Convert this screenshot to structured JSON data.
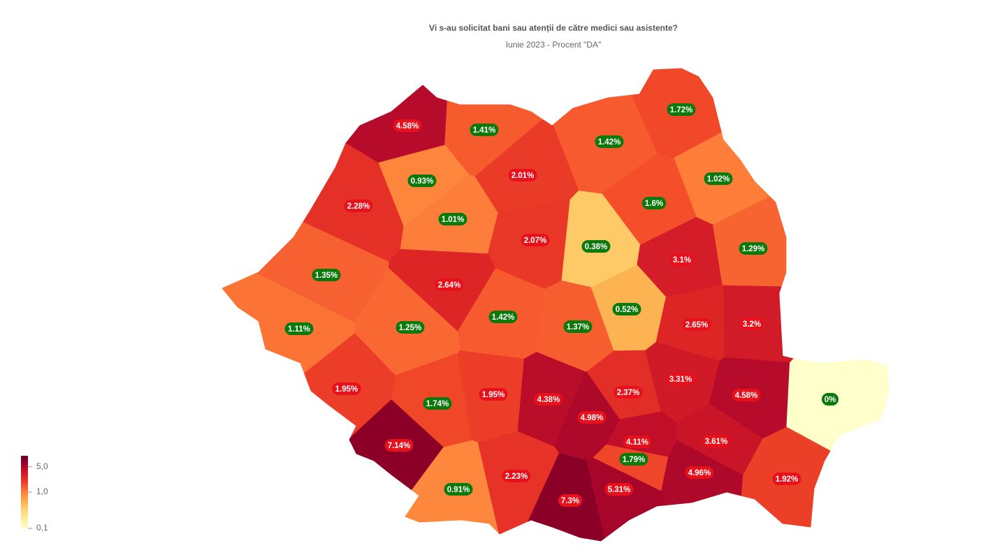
{
  "chart_data": {
    "type": "map",
    "title": "Vi s-au solicitat bani sau atenții de către medici sau asistente?",
    "subtitle": "Iunie 2023 - Procent \"DA\"",
    "values": [
      4.58,
      1.41,
      1.42,
      1.72,
      0.93,
      2.01,
      1.02,
      2.28,
      1.6,
      1.01,
      2.07,
      0.38,
      3.1,
      1.29,
      1.35,
      2.64,
      1.42,
      1.37,
      0.52,
      2.65,
      3.2,
      1.11,
      1.25,
      1.95,
      1.74,
      1.95,
      4.38,
      4.98,
      2.37,
      3.31,
      4.58,
      0,
      7.14,
      4.11,
      3.61,
      1.79,
      0.91,
      2.23,
      4.96,
      1.92,
      7.3,
      5.31
    ],
    "value_labels": [
      "4.58%",
      "1.41%",
      "1.42%",
      "1.72%",
      "0.93%",
      "2.01%",
      "1.02%",
      "2.28%",
      "1.6%",
      "1.01%",
      "2.07%",
      "0.38%",
      "3.1%",
      "1.29%",
      "1.35%",
      "2.64%",
      "1.42%",
      "1.37%",
      "0.52%",
      "2.65%",
      "3.2%",
      "1.11%",
      "1.25%",
      "1.95%",
      "1.74%",
      "1.95%",
      "4.38%",
      "4.98%",
      "2.37%",
      "3.31%",
      "4.58%",
      "0%",
      "7.14%",
      "4.11%",
      "3.61%",
      "1.79%",
      "0.91%",
      "2.23%",
      "4.96%",
      "1.92%",
      "7.3%",
      "5.31%"
    ],
    "label_colors": [
      "#e8101a",
      "#0b7a0b",
      "#0b7a0b",
      "#0b7a0b",
      "#0b7a0b",
      "#e8101a",
      "#0b7a0b",
      "#e8101a",
      "#0b7a0b",
      "#0b7a0b",
      "#e8101a",
      "#0b7a0b",
      "#e8101a",
      "#0b7a0b",
      "#0b7a0b",
      "#e8101a",
      "#0b7a0b",
      "#0b7a0b",
      "#0b7a0b",
      "#e8101a",
      "#e8101a",
      "#0b7a0b",
      "#0b7a0b",
      "#e8101a",
      "#0b7a0b",
      "#e8101a",
      "#e8101a",
      "#e8101a",
      "#e8101a",
      "#e8101a",
      "#e8101a",
      "#0b7a0b",
      "#e8101a",
      "#e8101a",
      "#e8101a",
      "#0b7a0b",
      "#0b7a0b",
      "#e8101a",
      "#e8101a",
      "#e8101a",
      "#e8101a",
      "#e8101a"
    ],
    "color_stops": [
      "#ffffcc",
      "#fff0a8",
      "#fee087",
      "#fec763",
      "#fea446",
      "#fd7f3a",
      "#f44f2a",
      "#e12826",
      "#c4102a",
      "#96002a",
      "#700022"
    ],
    "colorlim": [
      0.1,
      10
    ],
    "color_log": true,
    "colorticks": [
      {
        "value": 5,
        "label": "5,0"
      },
      {
        "value": 1,
        "label": "1,0"
      },
      {
        "value": 0.1,
        "label": "0,1"
      }
    ]
  }
}
